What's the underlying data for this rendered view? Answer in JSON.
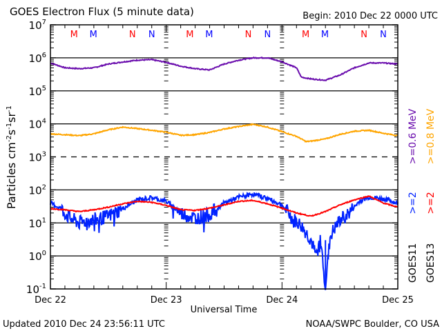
{
  "chart_data": {
    "type": "line",
    "title": "GOES Electron Flux (5 minute data)",
    "begin_label": "Begin: 2010 Dec 22 0000 UTC",
    "xlabel": "Universal Time",
    "ylabel": "Particles cm⁻²s⁻¹sr⁻¹",
    "ylabel_parts": {
      "main": "Particles cm",
      "exp1": "-2",
      "s": "s",
      "exp2": "-1",
      "sr": "sr",
      "exp3": "-1"
    },
    "yscale": "log",
    "ylim_exp": [
      -1,
      7
    ],
    "y_ticks": [
      {
        "base": "10",
        "exp": "7",
        "value_exp": 7
      },
      {
        "base": "10",
        "exp": "6",
        "value_exp": 6
      },
      {
        "base": "10",
        "exp": "5",
        "value_exp": 5
      },
      {
        "base": "10",
        "exp": "4",
        "value_exp": 4
      },
      {
        "base": "10",
        "exp": "3",
        "value_exp": 3
      },
      {
        "base": "10",
        "exp": "2",
        "value_exp": 2
      },
      {
        "base": "10",
        "exp": "1",
        "value_exp": 1
      },
      {
        "base": "10",
        "exp": "0",
        "value_exp": 0
      },
      {
        "base": "10",
        "exp": "-1",
        "value_exp": -1
      }
    ],
    "gridlines_exp": [
      {
        "value_exp": 6,
        "style": "solid"
      },
      {
        "value_exp": 5,
        "style": "solid"
      },
      {
        "value_exp": 4,
        "style": "solid"
      },
      {
        "value_exp": 3,
        "style": "dashed"
      },
      {
        "value_exp": 2,
        "style": "solid"
      },
      {
        "value_exp": 1,
        "style": "solid"
      },
      {
        "value_exp": 0,
        "style": "solid"
      }
    ],
    "x_range_hours": [
      0,
      72
    ],
    "x_ticks": [
      {
        "label": "Dec 22",
        "hour": 0
      },
      {
        "label": "Dec 23",
        "hour": 24
      },
      {
        "label": "Dec 24",
        "hour": 48
      },
      {
        "label": "Dec 25",
        "hour": 72
      }
    ],
    "minor_tick_every_hours": 3,
    "markers": [
      {
        "label": "M",
        "color": "#ff0000",
        "hour": 4.9
      },
      {
        "label": "M",
        "color": "#0000ff",
        "hour": 8.9
      },
      {
        "label": "N",
        "color": "#ff0000",
        "hour": 17.0
      },
      {
        "label": "N",
        "color": "#0000ff",
        "hour": 21.0
      },
      {
        "label": "M",
        "color": "#ff0000",
        "hour": 28.9
      },
      {
        "label": "M",
        "color": "#0000ff",
        "hour": 32.9
      },
      {
        "label": "N",
        "color": "#ff0000",
        "hour": 41.0
      },
      {
        "label": "N",
        "color": "#0000ff",
        "hour": 45.0
      },
      {
        "label": "M",
        "color": "#ff0000",
        "hour": 52.9
      },
      {
        "label": "M",
        "color": "#0000ff",
        "hour": 56.9
      },
      {
        "label": "N",
        "color": "#ff0000",
        "hour": 65.0
      },
      {
        "label": "N",
        "color": "#0000ff",
        "hour": 69.0
      }
    ],
    "series": [
      {
        "name": "GOES11 >=0.6 MeV",
        "color": "#6a0dad",
        "x_hours": [
          0,
          3,
          6,
          9,
          12,
          15,
          18,
          21,
          24,
          27,
          30,
          33,
          36,
          39,
          42,
          45,
          48,
          51,
          52,
          54,
          57,
          60,
          63,
          66,
          69,
          72
        ],
        "values": [
          700000,
          500000,
          470000,
          500000,
          650000,
          750000,
          850000,
          880000,
          730000,
          560000,
          470000,
          430000,
          650000,
          850000,
          1000000,
          1000000,
          760000,
          500000,
          260000,
          230000,
          210000,
          300000,
          500000,
          700000,
          700000,
          650000
        ]
      },
      {
        "name": "GOES13 >=0.8 MeV",
        "color": "#ffa500",
        "x_hours": [
          0,
          3,
          6,
          9,
          12,
          15,
          18,
          21,
          24,
          27,
          30,
          33,
          36,
          39,
          42,
          45,
          48,
          51,
          53,
          54,
          57,
          60,
          63,
          66,
          69,
          72
        ],
        "values": [
          5000,
          4700,
          4400,
          5000,
          6600,
          8000,
          7200,
          6400,
          5600,
          4500,
          4700,
          5500,
          7000,
          8300,
          9700,
          8000,
          5800,
          4200,
          2900,
          3000,
          3500,
          4800,
          6000,
          6400,
          5200,
          4400
        ]
      },
      {
        "name": "GOES11 >=2 MeV",
        "color": "#0022ff",
        "noisy": true,
        "x_hours": [
          0,
          2,
          4,
          6,
          8,
          10,
          12,
          15,
          18,
          21,
          24,
          27,
          30,
          33,
          36,
          39,
          42,
          45,
          48,
          50,
          52,
          54,
          55,
          56,
          57,
          58,
          60,
          62,
          64,
          66,
          68,
          70,
          72
        ],
        "values": [
          40,
          28,
          14,
          10,
          12,
          13,
          16,
          27,
          50,
          58,
          45,
          20,
          14,
          18,
          40,
          60,
          75,
          55,
          35,
          14,
          8,
          3,
          1,
          3,
          0.12,
          4,
          12,
          20,
          45,
          60,
          55,
          50,
          38
        ]
      },
      {
        "name": "GOES13 >=2 MeV",
        "color": "#ff0000",
        "x_hours": [
          0,
          3,
          6,
          9,
          12,
          15,
          18,
          21,
          24,
          27,
          30,
          33,
          36,
          39,
          42,
          45,
          48,
          51,
          54,
          57,
          60,
          63,
          66,
          69,
          72
        ],
        "values": [
          27,
          25,
          22,
          25,
          30,
          38,
          45,
          42,
          34,
          25,
          24,
          28,
          35,
          45,
          48,
          38,
          28,
          20,
          16,
          22,
          35,
          50,
          65,
          40,
          30
        ]
      }
    ],
    "legend": {
      "placement": "right",
      "columns": [
        {
          "satellite": "GOES11",
          "entries": [
            {
              "text": ">=2",
              "color": "#0022ff"
            },
            {
              "text": ">=0.6 MeV",
              "color": "#6a0dad"
            }
          ]
        },
        {
          "satellite": "GOES13",
          "entries": [
            {
              "text": ">=2",
              "color": "#ff0000"
            },
            {
              "text": ">=0.8 MeV",
              "color": "#ffa500"
            }
          ]
        }
      ],
      "units_label": "MeV"
    },
    "grid": true
  },
  "footer": {
    "updated": "Updated 2010 Dec 24 23:56:11 UTC",
    "credit": "NOAA/SWPC Boulder, CO USA"
  }
}
